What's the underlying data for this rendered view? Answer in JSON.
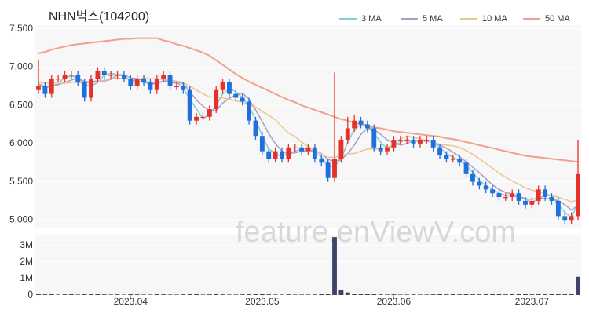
{
  "chart_data": [
    {
      "type": "candlestick",
      "title": "NHN벅스(104200)",
      "watermark": "feature.enViewV.com",
      "categories": [
        null,
        null,
        null,
        null,
        null,
        null,
        null,
        null,
        null,
        null,
        null,
        null,
        null,
        null,
        "2023.04",
        null,
        null,
        null,
        null,
        null,
        null,
        null,
        null,
        null,
        null,
        null,
        null,
        null,
        null,
        null,
        null,
        null,
        null,
        null,
        "2023.05",
        null,
        null,
        null,
        null,
        null,
        null,
        null,
        null,
        null,
        null,
        null,
        null,
        null,
        null,
        null,
        null,
        null,
        null,
        null,
        "2023.06",
        null,
        null,
        null,
        null,
        null,
        null,
        null,
        null,
        null,
        null,
        null,
        null,
        null,
        null,
        null,
        null,
        null,
        null,
        null,
        null,
        "2023.07",
        null,
        null,
        null,
        null,
        null,
        null,
        null
      ],
      "open": [
        6700,
        6750,
        6650,
        6850,
        6850,
        6900,
        6900,
        6800,
        6600,
        6850,
        6950,
        6900,
        6900,
        6900,
        6850,
        6750,
        6850,
        6800,
        6700,
        6850,
        6900,
        6750,
        6750,
        6700,
        6300,
        6350,
        6350,
        6450,
        6700,
        6800,
        6650,
        6600,
        6550,
        6300,
        6100,
        5900,
        5800,
        5900,
        5800,
        5950,
        5950,
        5900,
        5950,
        5800,
        5750,
        5550,
        5800,
        6050,
        6200,
        6300,
        6250,
        6200,
        5950,
        5900,
        5950,
        6050,
        6050,
        6050,
        6000,
        6050,
        6050,
        5950,
        5850,
        5800,
        5800,
        5750,
        5600,
        5500,
        5450,
        5400,
        5350,
        5300,
        5300,
        5350,
        5250,
        5200,
        5250,
        5400,
        5300,
        5250,
        5050,
        5000,
        5050
      ],
      "high": [
        7100,
        6800,
        6900,
        6900,
        6950,
        6950,
        6950,
        6850,
        6900,
        7000,
        7000,
        6950,
        6950,
        6950,
        6900,
        6900,
        6900,
        6850,
        6900,
        6950,
        6950,
        6800,
        6800,
        6750,
        6400,
        6400,
        6500,
        6750,
        6850,
        6850,
        6700,
        6650,
        6600,
        6350,
        6150,
        5950,
        5950,
        5950,
        6000,
        6000,
        6000,
        6000,
        6000,
        5850,
        5800,
        6930,
        6100,
        6350,
        6380,
        6350,
        6300,
        6250,
        6000,
        6000,
        6100,
        6100,
        6100,
        6100,
        6100,
        6100,
        6100,
        6000,
        5900,
        5850,
        5850,
        5800,
        5650,
        5550,
        5500,
        5450,
        5400,
        5350,
        5400,
        5400,
        5300,
        5300,
        5450,
        5450,
        5350,
        5300,
        5100,
        5100,
        6050
      ],
      "low": [
        6650,
        6600,
        6600,
        6800,
        6800,
        6850,
        6750,
        6550,
        6550,
        6800,
        6850,
        6850,
        6850,
        6800,
        6700,
        6700,
        6750,
        6650,
        6650,
        6800,
        6700,
        6700,
        6650,
        6250,
        6250,
        6300,
        6300,
        6400,
        6650,
        6600,
        6550,
        6500,
        6250,
        6050,
        5850,
        5750,
        5750,
        5750,
        5750,
        5900,
        5850,
        5850,
        5750,
        5700,
        5500,
        5500,
        5750,
        6000,
        6150,
        6200,
        6150,
        5900,
        5850,
        5850,
        5900,
        6000,
        6000,
        5950,
        5950,
        6000,
        5900,
        5800,
        5750,
        5750,
        5700,
        5550,
        5450,
        5400,
        5350,
        5300,
        5250,
        5250,
        5250,
        5200,
        5150,
        5150,
        5200,
        5250,
        5200,
        5000,
        4950,
        4950,
        5000
      ],
      "close": [
        6750,
        6650,
        6850,
        6850,
        6900,
        6900,
        6800,
        6600,
        6850,
        6950,
        6900,
        6900,
        6900,
        6850,
        6750,
        6850,
        6800,
        6700,
        6850,
        6900,
        6750,
        6750,
        6700,
        6300,
        6350,
        6350,
        6450,
        6700,
        6800,
        6650,
        6600,
        6550,
        6300,
        6100,
        5900,
        5800,
        5900,
        5800,
        5950,
        5950,
        5900,
        5950,
        5800,
        5750,
        5550,
        5800,
        6050,
        6200,
        6300,
        6250,
        6200,
        5950,
        5900,
        5950,
        6050,
        6050,
        6050,
        6000,
        6050,
        6050,
        5950,
        5850,
        5800,
        5800,
        5750,
        5600,
        5500,
        5450,
        5400,
        5350,
        5300,
        5300,
        5350,
        5250,
        5200,
        5250,
        5400,
        5300,
        5250,
        5050,
        5000,
        5050,
        5600
      ],
      "up_color": "#e8302a",
      "down_color": "#1f6fdc",
      "series": [
        {
          "name": "3 MA",
          "color": "#7fcfd3",
          "values": [
            6780,
            6730,
            6750,
            6780,
            6870,
            6880,
            6870,
            6770,
            6750,
            6800,
            6900,
            6920,
            6900,
            6880,
            6830,
            6820,
            6800,
            6780,
            6780,
            6820,
            6830,
            6800,
            6730,
            6580,
            6450,
            6330,
            6380,
            6500,
            6650,
            6720,
            6680,
            6600,
            6480,
            6320,
            6100,
            5930,
            5870,
            5830,
            5880,
            5900,
            5930,
            5930,
            5880,
            5830,
            5700,
            5700,
            5800,
            6020,
            6180,
            6250,
            6250,
            6130,
            6020,
            5930,
            5970,
            6020,
            6050,
            6030,
            6030,
            6030,
            6020,
            5950,
            5870,
            5820,
            5780,
            5720,
            5620,
            5520,
            5450,
            5400,
            5350,
            5320,
            5320,
            5300,
            5270,
            5230,
            5280,
            5320,
            5320,
            5200,
            5100,
            5030,
            5220
          ]
        },
        {
          "name": "5 MA",
          "color": "#a99cc8",
          "values": [
            6780,
            6750,
            6760,
            6770,
            6800,
            6830,
            6860,
            6810,
            6810,
            6820,
            6820,
            6840,
            6900,
            6900,
            6860,
            6850,
            6830,
            6790,
            6790,
            6820,
            6800,
            6790,
            6790,
            6680,
            6570,
            6490,
            6430,
            6430,
            6530,
            6590,
            6640,
            6660,
            6580,
            6440,
            6290,
            6130,
            6000,
            5900,
            5870,
            5880,
            5900,
            5910,
            5910,
            5870,
            5790,
            5770,
            5790,
            5870,
            5980,
            6120,
            6200,
            6180,
            6120,
            6050,
            6010,
            5980,
            6000,
            6040,
            6040,
            6040,
            6020,
            5980,
            5940,
            5890,
            5830,
            5760,
            5690,
            5620,
            5540,
            5460,
            5400,
            5360,
            5340,
            5310,
            5280,
            5270,
            5290,
            5280,
            5280,
            5250,
            5200,
            5130,
            5190
          ]
        },
        {
          "name": "10 MA",
          "color": "#ebc591",
          "values": [
            6800,
            6790,
            6790,
            6790,
            6790,
            6800,
            6800,
            6790,
            6790,
            6810,
            6830,
            6850,
            6860,
            6850,
            6840,
            6840,
            6860,
            6850,
            6850,
            6840,
            6830,
            6820,
            6800,
            6750,
            6700,
            6650,
            6610,
            6610,
            6600,
            6580,
            6560,
            6540,
            6500,
            6480,
            6420,
            6370,
            6310,
            6220,
            6140,
            6090,
            6020,
            5960,
            5900,
            5860,
            5820,
            5820,
            5840,
            5870,
            5870,
            5900,
            5930,
            5930,
            5930,
            5950,
            5990,
            6060,
            6100,
            6080,
            6060,
            6040,
            6020,
            5990,
            5980,
            5970,
            5950,
            5910,
            5860,
            5800,
            5740,
            5680,
            5610,
            5560,
            5510,
            5470,
            5420,
            5390,
            5370,
            5350,
            5320,
            5300,
            5270,
            5240,
            5260
          ]
        },
        {
          "name": "50 MA",
          "color": "#f2a08c",
          "values": [
            7180,
            7200,
            7230,
            7250,
            7270,
            7290,
            7300,
            7310,
            7320,
            7330,
            7340,
            7350,
            7360,
            7370,
            7370,
            7380,
            7380,
            7380,
            7380,
            7350,
            7330,
            7300,
            7280,
            7250,
            7220,
            7190,
            7150,
            7090,
            7030,
            6970,
            6910,
            6860,
            6810,
            6770,
            6730,
            6690,
            6650,
            6610,
            6570,
            6540,
            6500,
            6470,
            6440,
            6410,
            6380,
            6350,
            6320,
            6300,
            6270,
            6250,
            6230,
            6210,
            6200,
            6180,
            6160,
            6150,
            6140,
            6130,
            6120,
            6110,
            6100,
            6090,
            6070,
            6060,
            6040,
            6020,
            6000,
            5980,
            5960,
            5940,
            5920,
            5900,
            5880,
            5860,
            5840,
            5830,
            5820,
            5810,
            5800,
            5790,
            5780,
            5770,
            5760
          ]
        }
      ],
      "ylim": [
        4900,
        7550
      ],
      "yticks": [
        {
          "value": 5000,
          "label": "5,000"
        },
        {
          "value": 5500,
          "label": "5,500"
        },
        {
          "value": 6000,
          "label": "6,000"
        },
        {
          "value": 6500,
          "label": "6,500"
        },
        {
          "value": 7000,
          "label": "7,000"
        },
        {
          "value": 7500,
          "label": "7,500"
        }
      ],
      "grid": true
    },
    {
      "type": "bar",
      "color": "#3d4468",
      "values": [
        60000,
        40000,
        50000,
        30000,
        40000,
        50000,
        30000,
        60000,
        50000,
        70000,
        40000,
        30000,
        40000,
        30000,
        70000,
        40000,
        30000,
        30000,
        50000,
        40000,
        30000,
        30000,
        40000,
        60000,
        50000,
        30000,
        40000,
        70000,
        40000,
        30000,
        30000,
        40000,
        50000,
        60000,
        60000,
        40000,
        30000,
        30000,
        40000,
        30000,
        30000,
        30000,
        40000,
        50000,
        80000,
        3500000,
        300000,
        160000,
        90000,
        60000,
        50000,
        60000,
        40000,
        30000,
        40000,
        30000,
        30000,
        40000,
        30000,
        30000,
        40000,
        50000,
        40000,
        50000,
        40000,
        50000,
        40000,
        40000,
        60000,
        50000,
        80000,
        40000,
        60000,
        70000,
        50000,
        40000,
        80000,
        50000,
        60000,
        90000,
        60000,
        80000,
        1100000
      ],
      "ylim": [
        0,
        3600000
      ],
      "yticks": [
        0,
        {
          "value": 1000000,
          "label": "1M"
        },
        {
          "value": 2000000,
          "label": "2M"
        },
        {
          "value": 3000000,
          "label": "3M"
        }
      ],
      "grid": true
    }
  ]
}
